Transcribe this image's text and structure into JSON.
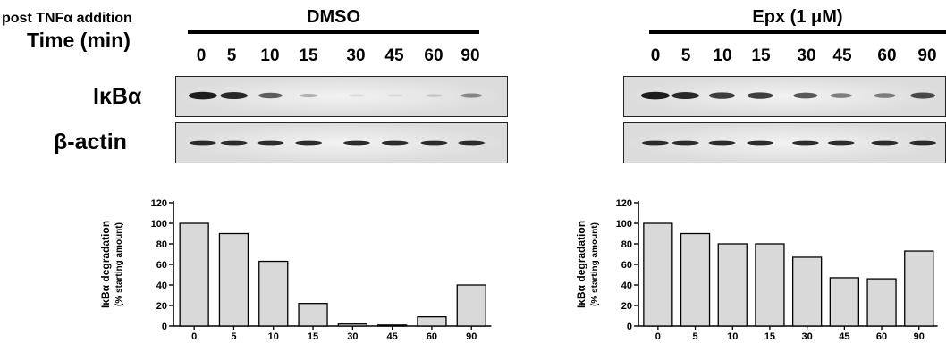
{
  "header": {
    "post_label": "post TNFα addition",
    "time_label": "Time (min)"
  },
  "rows": {
    "protein_label": "IκBα",
    "loading_label": "β-actin"
  },
  "panels": [
    {
      "condition": "DMSO",
      "timepoints": [
        "0",
        "5",
        "10",
        "15",
        "30",
        "45",
        "60",
        "90"
      ],
      "ikba_band_intensity": [
        1.0,
        0.9,
        0.63,
        0.22,
        0.02,
        0.01,
        0.09,
        0.4
      ],
      "actin_band_intensity": [
        1,
        1,
        1,
        1,
        1,
        1,
        1,
        1
      ]
    },
    {
      "condition": "Epx (1 μM)",
      "timepoints": [
        "0",
        "5",
        "10",
        "15",
        "30",
        "45",
        "60",
        "90"
      ],
      "ikba_band_intensity": [
        1.0,
        0.9,
        0.8,
        0.8,
        0.67,
        0.47,
        0.46,
        0.73
      ],
      "actin_band_intensity": [
        1,
        1,
        1,
        1,
        1,
        1,
        1,
        1
      ]
    }
  ],
  "chart_data": [
    {
      "type": "bar",
      "categories": [
        "0",
        "5",
        "10",
        "15",
        "30",
        "45",
        "60",
        "90"
      ],
      "values": [
        100,
        90,
        63,
        22,
        2,
        1,
        9,
        40
      ],
      "ylabel": "IκBα degradation",
      "ylabel2": "(% starting amount)",
      "ylim": [
        0,
        120
      ],
      "yticks": [
        "0",
        "20",
        "40",
        "60",
        "80",
        "100",
        "120"
      ],
      "bar_color": "#d9d9d9",
      "grid": false
    },
    {
      "type": "bar",
      "categories": [
        "0",
        "5",
        "10",
        "15",
        "30",
        "45",
        "60",
        "90"
      ],
      "values": [
        100,
        90,
        80,
        80,
        67,
        47,
        46,
        73
      ],
      "ylabel": "IκBα degradation",
      "ylabel2": "(% starting amount)",
      "ylim": [
        0,
        120
      ],
      "yticks": [
        "0",
        "20",
        "40",
        "60",
        "80",
        "100",
        "120"
      ],
      "bar_color": "#d9d9d9",
      "grid": false
    }
  ]
}
